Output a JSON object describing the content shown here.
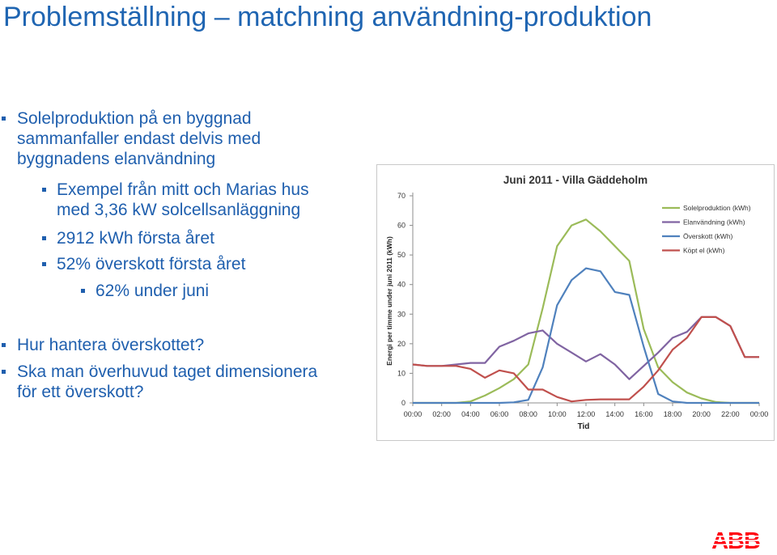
{
  "slide": {
    "title": "Problemställning – matchning användning-produktion"
  },
  "bullets": [
    {
      "level": 1,
      "lines": [
        "Solelproduktion på en byggnad",
        "sammanfaller endast delvis med",
        "byggnadens elanvändning"
      ]
    },
    {
      "level": 2,
      "lines": [
        "Exempel från mitt och Marias hus",
        "med 3,36 kW solcellsanläggning"
      ]
    },
    {
      "level": 2,
      "lines": [
        "2912 kWh första året"
      ]
    },
    {
      "level": 2,
      "lines": [
        "52% överskott första året"
      ]
    },
    {
      "level": 3,
      "lines": [
        "62% under juni"
      ]
    },
    {
      "level": 1,
      "lines": [
        "Hur hantera överskottet?"
      ]
    },
    {
      "level": 1,
      "lines": [
        "Ska man överhuvud taget dimensionera",
        "för ett överskott?"
      ]
    }
  ],
  "logo": {
    "text": "ABB",
    "color": "#ff000f"
  },
  "chart_data": {
    "type": "line",
    "title": "Juni 2011 - Villa Gäddeholm",
    "xlabel": "Tid",
    "ylabel": "Energi per timme under juni 2011 (kWh)",
    "ylim": [
      0,
      70
    ],
    "yticks": [
      0,
      10,
      20,
      30,
      40,
      50,
      60,
      70
    ],
    "xlim": [
      0,
      24
    ],
    "xticks": [
      0,
      2,
      4,
      6,
      8,
      10,
      12,
      14,
      16,
      18,
      20,
      22,
      24
    ],
    "xtick_labels": [
      "00:00",
      "02:00",
      "04:00",
      "06:00",
      "08:00",
      "10:00",
      "12:00",
      "14:00",
      "16:00",
      "18:00",
      "20:00",
      "22:00",
      "00:00"
    ],
    "grid": false,
    "legend_position": "top-right",
    "x": [
      0,
      1,
      2,
      3,
      4,
      5,
      6,
      7,
      8,
      9,
      10,
      11,
      12,
      13,
      14,
      15,
      16,
      17,
      18,
      19,
      20,
      21,
      22,
      23,
      24
    ],
    "series": [
      {
        "name": "Solelproduktion (kWh)",
        "color": "#9bbb59",
        "values": [
          0,
          0,
          0,
          0,
          0.5,
          2.5,
          5,
          8,
          13,
          32,
          53,
          60,
          62,
          58,
          53,
          48,
          25,
          12,
          7,
          3.5,
          1.5,
          0.3,
          0,
          0,
          0
        ]
      },
      {
        "name": "Elanvändning (kWh)",
        "color": "#8064a2",
        "values": [
          13,
          12.5,
          12.5,
          13,
          13.5,
          13.5,
          19,
          21,
          23.5,
          24.5,
          20,
          17,
          14,
          16.5,
          13,
          8,
          12.5,
          17,
          22,
          24,
          29,
          29,
          26,
          15.5,
          15.5
        ]
      },
      {
        "name": "Överskott (kWh)",
        "color": "#4f81bd",
        "values": [
          0,
          0,
          0,
          0,
          0,
          0,
          0,
          0.2,
          1,
          12,
          33,
          41.5,
          45.5,
          44.5,
          37.5,
          36.5,
          19,
          3,
          0.5,
          0,
          0,
          0,
          0,
          0,
          0
        ]
      },
      {
        "name": "Köpt el (kWh)",
        "color": "#c0504d",
        "values": [
          13,
          12.5,
          12.5,
          12.5,
          11.5,
          8.5,
          11,
          10,
          4.5,
          4.5,
          2,
          0.5,
          1,
          1.2,
          1.2,
          1.2,
          5.5,
          11,
          18,
          22,
          29,
          29,
          26,
          15.5,
          15.5
        ]
      }
    ]
  }
}
